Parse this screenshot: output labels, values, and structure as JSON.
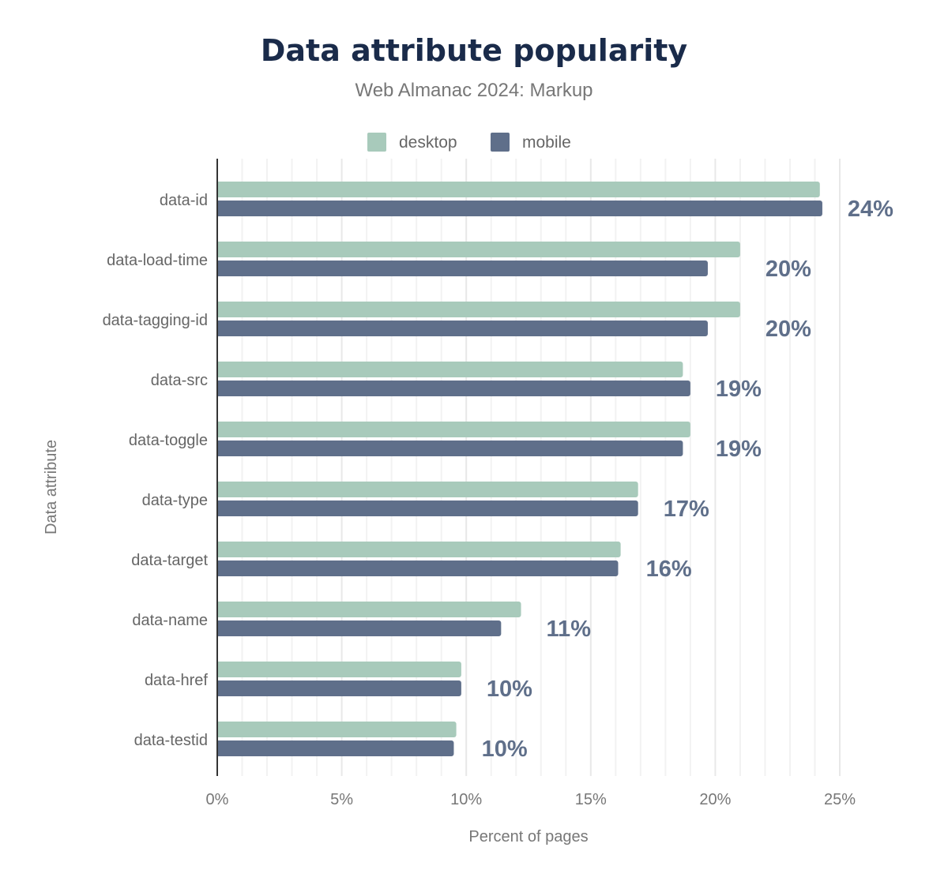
{
  "chart_data": {
    "type": "bar",
    "orientation": "horizontal",
    "title": "Data attribute popularity",
    "subtitle": "Web Almanac 2024: Markup",
    "xlabel": "Percent of pages",
    "ylabel": "Data attribute",
    "xlim": [
      0,
      25
    ],
    "xticks": [
      "0%",
      "5%",
      "10%",
      "15%",
      "20%",
      "25%"
    ],
    "grid": true,
    "legend_position": "top",
    "categories": [
      "data-id",
      "data-load-time",
      "data-tagging-id",
      "data-src",
      "data-toggle",
      "data-type",
      "data-target",
      "data-name",
      "data-href",
      "data-testid"
    ],
    "series": [
      {
        "name": "desktop",
        "color": "#a8cabb",
        "values": [
          24.2,
          21.0,
          21.0,
          18.7,
          19.0,
          16.9,
          16.2,
          12.2,
          9.8,
          9.6
        ]
      },
      {
        "name": "mobile",
        "color": "#5f6f8a",
        "values": [
          24.3,
          19.7,
          19.7,
          19.0,
          18.7,
          16.9,
          16.1,
          11.4,
          9.8,
          9.5
        ]
      }
    ],
    "data_labels": [
      "24%",
      "20%",
      "20%",
      "19%",
      "19%",
      "17%",
      "16%",
      "11%",
      "10%",
      "10%"
    ]
  }
}
